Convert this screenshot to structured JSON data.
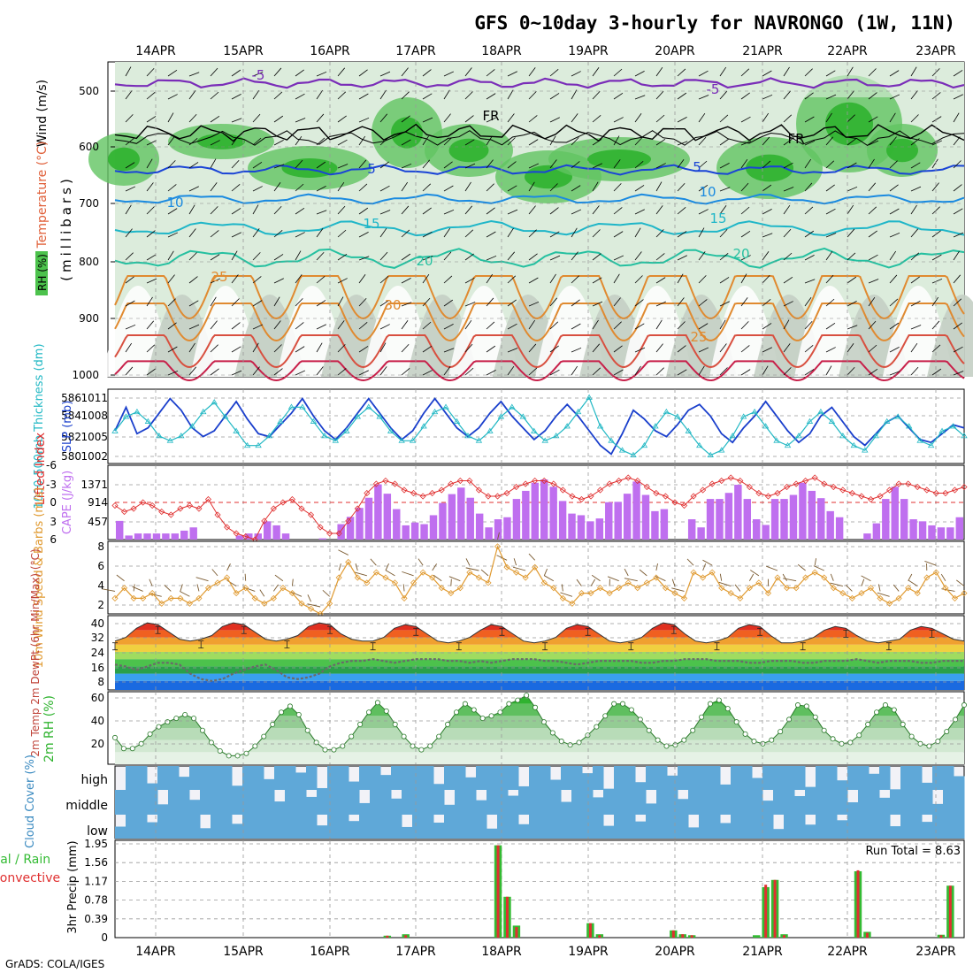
{
  "title": "GFS 0~10day 3-hourly for NAVRONGO (1W, 11N)",
  "footer": "GrADS: COLA/IGES",
  "days": [
    "14APR",
    "15APR",
    "16APR",
    "17APR",
    "18APR",
    "19APR",
    "20APR",
    "21APR",
    "22APR",
    "23APR"
  ],
  "colors": {
    "rh_green": "#2fb32f",
    "rh_mid": "#62c462",
    "rh_light": "#b7dcb7",
    "rh_pale": "#dcecdc",
    "rh_grey": "#c4cfc4",
    "slp": "#1a3fcc",
    "thickness": "#22b8c4",
    "cape": "#bf6fef",
    "lifted_index": "#e03030",
    "wind": "#e09a30",
    "total_precip": "#33bb33",
    "conv_precip": "#e03030",
    "cloud": "#5fa8d8"
  },
  "panels": {
    "upper": {
      "ylabel_wind": "Wind (m/s)",
      "ylabel_temp": "Temperature (°C)",
      "ylabel_rh": "RH (%)",
      "ylabel_mb": "(millibars)",
      "pressure_ticks": [
        "500",
        "600",
        "700",
        "800",
        "900",
        "1000"
      ],
      "isotherm_labels": [
        "-5",
        "-5",
        "FR",
        "FR",
        "5",
        "5",
        "10",
        "10",
        "15",
        "15",
        "20",
        "20",
        "25",
        "30",
        "25"
      ]
    },
    "slp": {
      "ylabel_left": "1000-500mb Thickness (dm)",
      "ylabel_right": "SLP (mb)",
      "thickness_ticks": [
        "586",
        "584",
        "582",
        "580"
      ],
      "slp_ticks": [
        "1011",
        "1008",
        "1005",
        "1002"
      ]
    },
    "cape": {
      "ylabel_left": "Lifted Index",
      "ylabel_right": "CAPE (J/kg)",
      "li_ticks": [
        "-6",
        "-3",
        "0",
        "3",
        "6"
      ],
      "cape_ticks": [
        "1371",
        "914",
        "457"
      ]
    },
    "wind": {
      "ylabel": "10m Wind Speed & Barbs (m/s)",
      "ticks": [
        "8",
        "6",
        "4",
        "2"
      ]
    },
    "temp": {
      "ylabel": "2m Temp 2m DewPt (6hr Min/Max) (°C)",
      "ticks": [
        "40",
        "32",
        "24",
        "16",
        "8"
      ]
    },
    "rh": {
      "ylabel": "2m RH (%)",
      "ticks": [
        "60",
        "40",
        "20"
      ]
    },
    "cloud": {
      "ylabel": "Cloud Cover (%)",
      "levels": [
        "high",
        "middle",
        "low"
      ]
    },
    "precip": {
      "ylabel_left": "Total / Rain Convective",
      "ylabel_right": "3hr Precip (mm)",
      "ticks": [
        "1.95",
        "1.56",
        "1.17",
        "0.78",
        "0.39",
        "0"
      ],
      "run_total": "Run Total = 8.63"
    }
  },
  "chart_data": [
    {
      "type": "line",
      "title": "1000-500mb Thickness (dm) / SLP (mb)",
      "ylim_slp": [
        1000.5,
        1012
      ],
      "ylim_thickness": [
        579.5,
        586.5
      ],
      "series": [
        {
          "name": "SLP (mb)",
          "values": [
            1005.5,
            1009.5,
            1005,
            1006,
            1008.5,
            1011,
            1009,
            1006,
            1004.5,
            1005.5,
            1008,
            1010.5,
            1007.5,
            1005,
            1004.5,
            1006.5,
            1008.5,
            1011,
            1008,
            1005.5,
            1004,
            1006,
            1008.5,
            1011,
            1008.5,
            1006,
            1004,
            1005.5,
            1008.5,
            1011,
            1008.5,
            1006,
            1004.5,
            1006,
            1008.5,
            1010.5,
            1008,
            1006,
            1004,
            1005.5,
            1008,
            1010,
            1008,
            1005.5,
            1003,
            1001.5,
            1005,
            1009,
            1007.5,
            1005.5,
            1004.5,
            1006.5,
            1009,
            1010,
            1008,
            1005,
            1003.5,
            1006,
            1008,
            1010.5,
            1008,
            1005.5,
            1003.5,
            1005,
            1008,
            1009.5,
            1007,
            1004.5,
            1003,
            1005,
            1007,
            1008,
            1006,
            1004,
            1003.5,
            1005,
            1006.5,
            1006
          ]
        },
        {
          "name": "1000-500mb Thickness (dm)",
          "values": [
            582.5,
            584,
            584.5,
            583.5,
            582,
            581.5,
            582,
            583,
            584.5,
            585.5,
            584,
            582.5,
            581,
            581,
            582,
            583.5,
            585,
            585,
            583.5,
            582,
            581.5,
            582.5,
            584,
            585,
            584,
            582.5,
            581.5,
            581.5,
            583,
            584.5,
            585,
            583.5,
            582,
            581.5,
            582.5,
            584,
            585,
            584,
            582.5,
            581.5,
            582,
            583,
            584.5,
            586,
            583,
            581.5,
            580.5,
            580,
            581,
            583,
            584.5,
            584,
            582.5,
            581,
            580,
            580.5,
            582,
            584,
            584.5,
            583,
            581.5,
            581,
            582,
            583.5,
            584.5,
            583.5,
            582,
            581,
            580.5,
            582,
            583.5,
            584,
            583,
            581.5,
            581,
            582.5,
            583,
            582
          ]
        }
      ]
    },
    {
      "type": "bar",
      "title": "Lifted Index / CAPE (J/kg)",
      "ylim_cape": [
        0,
        1830
      ],
      "ylim_li": [
        6,
        -6
      ],
      "series": [
        {
          "name": "CAPE (J/kg)",
          "values": [
            460,
            100,
            150,
            150,
            150,
            150,
            150,
            220,
            300,
            0,
            0,
            0,
            0,
            100,
            150,
            150,
            450,
            350,
            150,
            0,
            0,
            0,
            30,
            0,
            380,
            560,
            780,
            1030,
            1360,
            1130,
            750,
            350,
            420,
            380,
            600,
            900,
            1120,
            1280,
            1030,
            640,
            300,
            500,
            550,
            1000,
            1200,
            1400,
            1480,
            1300,
            950,
            640,
            600,
            450,
            520,
            920,
            930,
            1130,
            1430,
            1100,
            700,
            750,
            0,
            0,
            500,
            300,
            1000,
            1000,
            1150,
            1350,
            1000,
            500,
            360,
            1000,
            1000,
            1100,
            1400,
            1200,
            1020,
            700,
            550,
            0,
            0,
            150,
            400,
            1000,
            1300,
            1000,
            500,
            450,
            350,
            300,
            300,
            550
          ]
        },
        {
          "name": "Lifted Index",
          "values": [
            0.5,
            1.5,
            1,
            0,
            0.5,
            1.5,
            2,
            1,
            0.5,
            1,
            -0.5,
            2,
            4,
            5,
            5.5,
            6,
            3,
            1,
            0,
            -0.5,
            1,
            2,
            4,
            5,
            5,
            3,
            1,
            -1.5,
            -3,
            -3.5,
            -3,
            -2,
            -1.5,
            -1,
            -1.5,
            -2,
            -3,
            -3.5,
            -3.5,
            -2,
            -1,
            -1,
            -1.5,
            -2.5,
            -3,
            -3.5,
            -3.5,
            -3,
            -2,
            -1,
            -0.5,
            -1,
            -2,
            -3,
            -3.5,
            -4,
            -3.5,
            -2.5,
            -1.5,
            -1,
            0,
            0.5,
            -1,
            -2,
            -3,
            -3.5,
            -4,
            -3.5,
            -2.5,
            -1.5,
            -1,
            -1.5,
            -2.5,
            -3,
            -3.5,
            -4,
            -3,
            -2.5,
            -2,
            -1.5,
            -1,
            -0.5,
            -1,
            -2,
            -3,
            -3,
            -2.5,
            -2,
            -1.5,
            -1.5,
            -2,
            -2.5
          ]
        }
      ]
    },
    {
      "type": "line",
      "title": "10m Wind Speed (m/s)",
      "ylim": [
        1.5,
        8.5
      ],
      "series": [
        {
          "name": "10m Wind Speed (m/s)",
          "values": [
            3,
            4,
            3,
            3,
            3.5,
            2.5,
            3,
            3,
            2.5,
            3,
            4,
            4.5,
            5,
            3.5,
            4,
            3,
            2.5,
            3,
            4,
            3.5,
            2.5,
            2,
            1.5,
            2.5,
            5,
            6.5,
            5,
            4.5,
            5.5,
            5,
            4.5,
            3,
            4.5,
            5.5,
            5,
            4,
            3.5,
            4,
            5.5,
            5,
            4.5,
            8,
            6,
            5.5,
            5,
            6,
            4.5,
            4,
            3,
            2.5,
            3.5,
            3.5,
            4,
            3.5,
            4,
            4.5,
            4,
            4.5,
            5,
            4,
            3.5,
            3,
            5.5,
            5,
            5.5,
            4,
            3.5,
            3,
            4,
            4.5,
            3.5,
            5,
            4,
            4,
            5,
            5.5,
            5,
            4,
            3.5,
            3,
            3.5,
            4,
            3,
            2.5,
            3,
            4,
            3.5,
            5,
            5.5,
            4,
            3,
            3.5
          ]
        }
      ]
    },
    {
      "type": "area",
      "title": "2m Temp / 2m DewPt (°C)",
      "ylim": [
        3,
        44
      ],
      "series": [
        {
          "name": "2m Temp",
          "values": [
            30,
            32,
            37,
            40,
            39,
            35,
            31,
            30,
            31,
            33,
            38,
            40,
            39,
            35,
            31,
            30,
            31,
            33,
            38,
            40,
            39,
            34,
            31,
            30,
            30,
            32,
            37,
            39,
            38,
            34,
            30,
            29,
            30,
            32,
            36,
            39,
            38,
            34,
            30,
            29,
            30,
            32,
            37,
            39,
            38,
            34,
            30,
            29,
            30,
            32,
            37,
            40,
            39,
            34,
            30,
            29,
            30,
            32,
            37,
            39,
            38,
            33,
            29,
            29,
            30,
            32,
            36,
            38,
            37,
            33,
            30,
            29,
            30,
            31,
            36,
            38,
            37,
            34,
            31,
            30
          ]
        },
        {
          "name": "2m DewPt",
          "values": [
            17,
            16,
            14,
            16,
            18,
            18,
            17,
            12,
            9,
            8,
            9,
            12,
            14,
            16,
            17,
            14,
            10,
            9,
            10,
            12,
            16,
            18,
            19,
            19,
            20,
            19,
            18,
            19,
            20,
            20,
            20,
            19,
            19,
            18,
            19,
            18,
            19,
            20,
            20,
            20,
            19,
            19,
            18,
            17,
            18,
            19,
            19,
            19,
            19,
            18,
            18,
            19,
            19,
            20,
            20,
            20,
            19,
            19,
            19,
            18,
            18,
            19,
            19,
            19,
            18,
            18,
            19,
            19,
            19,
            20,
            19,
            18,
            19,
            19,
            19,
            18,
            18,
            19,
            19,
            19
          ]
        }
      ]
    },
    {
      "type": "area",
      "title": "2m RH (%)",
      "ylim": [
        5,
        65
      ],
      "series": [
        {
          "name": "2m RH",
          "values": [
            27,
            18,
            18,
            22,
            30,
            36,
            40,
            43,
            46,
            43,
            33,
            23,
            16,
            12,
            12,
            14,
            20,
            28,
            38,
            48,
            53,
            46,
            33,
            23,
            17,
            17,
            20,
            28,
            38,
            48,
            56,
            49,
            38,
            28,
            20,
            17,
            20,
            28,
            38,
            48,
            55,
            50,
            43,
            45,
            48,
            55,
            58,
            62,
            52,
            40,
            31,
            24,
            21,
            23,
            29,
            36,
            45,
            55,
            55,
            50,
            42,
            33,
            25,
            20,
            21,
            25,
            33,
            44,
            55,
            58,
            51,
            40,
            30,
            24,
            22,
            25,
            32,
            42,
            54,
            53,
            44,
            33,
            26,
            22,
            23,
            29,
            38,
            48,
            54,
            50,
            38,
            28,
            22,
            20,
            24,
            32,
            42,
            54
          ]
        }
      ]
    },
    {
      "type": "bar",
      "title": "3hr Precip (mm)",
      "ylim": [
        0,
        1.95
      ],
      "series": [
        {
          "name": "Total",
          "values": [
            0,
            0,
            0,
            0,
            0,
            0,
            0,
            0,
            0,
            0,
            0,
            0,
            0,
            0,
            0,
            0,
            0,
            0,
            0,
            0,
            0,
            0,
            0,
            0,
            0,
            0,
            0,
            0,
            0,
            0.04,
            0,
            0.07,
            0,
            0,
            0,
            0,
            0,
            0,
            0,
            0,
            0,
            1.92,
            0.85,
            0.25,
            0,
            0,
            0,
            0,
            0,
            0,
            0,
            0.3,
            0.07,
            0,
            0,
            0,
            0,
            0,
            0,
            0,
            0.15,
            0.07,
            0.05,
            0,
            0,
            0,
            0,
            0,
            0,
            0.05,
            1.05,
            1.2,
            0.07,
            0,
            0,
            0,
            0,
            0,
            0,
            0,
            1.38,
            0.12,
            0,
            0,
            0,
            0,
            0,
            0,
            0,
            0.06,
            1.08,
            0
          ]
        },
        {
          "name": "Convective",
          "values": [
            0,
            0,
            0,
            0,
            0,
            0,
            0,
            0,
            0,
            0,
            0,
            0,
            0,
            0,
            0,
            0,
            0,
            0,
            0,
            0,
            0,
            0,
            0,
            0,
            0,
            0,
            0,
            0,
            0,
            0.04,
            0,
            0.05,
            0,
            0,
            0,
            0,
            0,
            0,
            0,
            0,
            0,
            1.92,
            0.85,
            0.22,
            0,
            0,
            0,
            0,
            0,
            0,
            0,
            0.3,
            0.05,
            0,
            0,
            0,
            0,
            0,
            0,
            0,
            0.15,
            0.07,
            0.05,
            0,
            0,
            0,
            0,
            0,
            0,
            0,
            1.1,
            1.2,
            0.05,
            0,
            0,
            0,
            0,
            0,
            0,
            0,
            1.4,
            0.1,
            0,
            0,
            0,
            0,
            0,
            0,
            0,
            0.05,
            1.08,
            0
          ]
        }
      ]
    }
  ]
}
